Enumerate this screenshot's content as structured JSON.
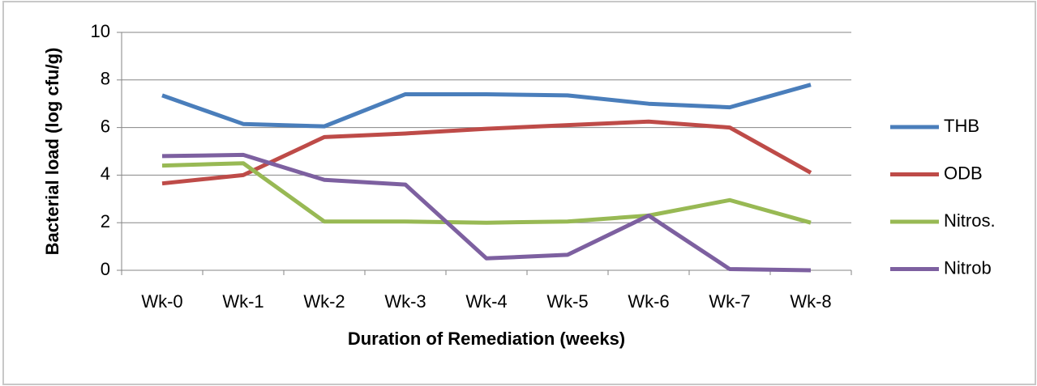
{
  "chart_data": {
    "type": "line",
    "y_label": "Bacterial load (log cfu/g)",
    "x_label": "Duration of Remediation (weeks)",
    "categories": [
      "Wk-0",
      "Wk-1",
      "Wk-2",
      "Wk-3",
      "Wk-4",
      "Wk-5",
      "Wk-6",
      "Wk-7",
      "Wk-8"
    ],
    "series": [
      {
        "name": "THB",
        "color": "#4a7ebb",
        "values": [
          7.35,
          6.15,
          6.05,
          7.4,
          7.4,
          7.35,
          7.0,
          6.85,
          7.8
        ]
      },
      {
        "name": "ODB",
        "color": "#be4b48",
        "values": [
          3.65,
          4.0,
          5.6,
          5.75,
          5.95,
          6.1,
          6.25,
          6.0,
          4.1
        ]
      },
      {
        "name": "Nitros.",
        "color": "#98b954",
        "values": [
          4.4,
          4.5,
          2.05,
          2.05,
          2.0,
          2.05,
          2.3,
          2.95,
          2.0
        ]
      },
      {
        "name": "Nitrob",
        "color": "#7d60a0",
        "values": [
          4.8,
          4.85,
          3.8,
          3.6,
          0.5,
          0.65,
          2.3,
          0.05,
          0.0
        ]
      }
    ],
    "ylim": [
      0,
      10
    ],
    "yticks": [
      0,
      2,
      4,
      6,
      8,
      10
    ],
    "grid": true,
    "legend": "right"
  }
}
